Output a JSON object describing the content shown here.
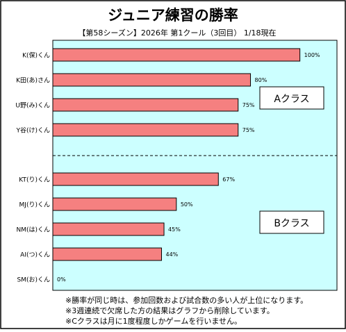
{
  "chart_data": {
    "type": "bar",
    "orientation": "horizontal",
    "title": "ジュニア練習の勝率",
    "subtitle": "【第58シーズン】2026年 第1クール（3回目） 1/18現在",
    "categories": [
      "K(保)くん",
      "K田(あ)さん",
      "U野(み)くん",
      "Y谷(け)くん",
      "KT(り)くん",
      "MJ(り)くん",
      "NM(は)くん",
      "AI(つ)くん",
      "SM(お)くん"
    ],
    "values": [
      100,
      80,
      75,
      75,
      67,
      50,
      45,
      44,
      0
    ],
    "value_labels": [
      "100%",
      "80%",
      "75%",
      "75%",
      "67%",
      "50%",
      "45%",
      "44%",
      "0%"
    ],
    "xlim": [
      0,
      115
    ],
    "groups": [
      {
        "label": "Aクラス",
        "members": [
          "K(保)くん",
          "K田(あ)さん",
          "U野(み)くん",
          "Y谷(け)くん"
        ]
      },
      {
        "label": "Bクラス",
        "members": [
          "KT(り)くん",
          "MJ(り)くん",
          "NM(は)くん",
          "AI(つ)くん",
          "SM(お)くん"
        ]
      }
    ],
    "grid": false,
    "legend": "none",
    "notes": [
      "※勝率が同じ時は、参加回数および試合数の多い人が上位になります。",
      "※3週連続で欠席した方の結果はグラフから削除しています。",
      "※Cクラスは月に1度程度しかゲームを行いません。"
    ],
    "colors": {
      "bar": "#f58080",
      "plot_bg": "#ccffff",
      "frame": "#000000"
    }
  }
}
